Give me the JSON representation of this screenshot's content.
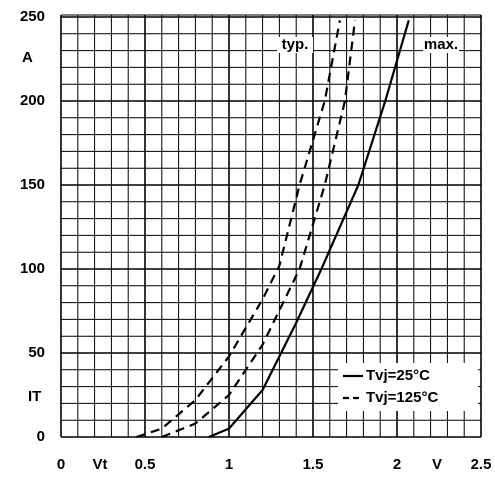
{
  "chart_data": {
    "type": "line",
    "xlim": [
      0,
      2.5
    ],
    "xticks": [
      0,
      0.5,
      1,
      1.5,
      2,
      2.5
    ],
    "ylim": [
      0,
      250
    ],
    "yticks": [
      0,
      50,
      100,
      150,
      200,
      250
    ],
    "grid": true,
    "grid_minor_divisions": 5,
    "color": "#000000",
    "x_label": "V",
    "x_symbol": "Vt",
    "y_label": "A",
    "y_symbol": "IT",
    "annotations": [
      "typ.",
      "max."
    ],
    "legend": [
      {
        "label": "Tvj=25°C",
        "dashed": false
      },
      {
        "label": "Tvj=125°C",
        "dashed": true
      }
    ],
    "series": [
      {
        "dashed": true,
        "x": [
          0.45,
          0.6,
          0.8,
          1.0,
          1.2,
          1.3,
          1.42,
          1.57,
          1.66
        ],
        "values": [
          0,
          5,
          22,
          48,
          82,
          102,
          150,
          200,
          248
        ]
      },
      {
        "dashed": true,
        "x": [
          0.6,
          0.8,
          1.0,
          1.2,
          1.42,
          1.57,
          1.69,
          1.75
        ],
        "values": [
          0,
          8,
          25,
          55,
          100,
          150,
          200,
          248
        ]
      },
      {
        "dashed": false,
        "x": [
          0.88,
          1.0,
          1.2,
          1.4,
          1.55,
          1.77,
          1.93,
          2.07
        ],
        "values": [
          0,
          5,
          28,
          68,
          100,
          150,
          200,
          248
        ]
      }
    ]
  }
}
